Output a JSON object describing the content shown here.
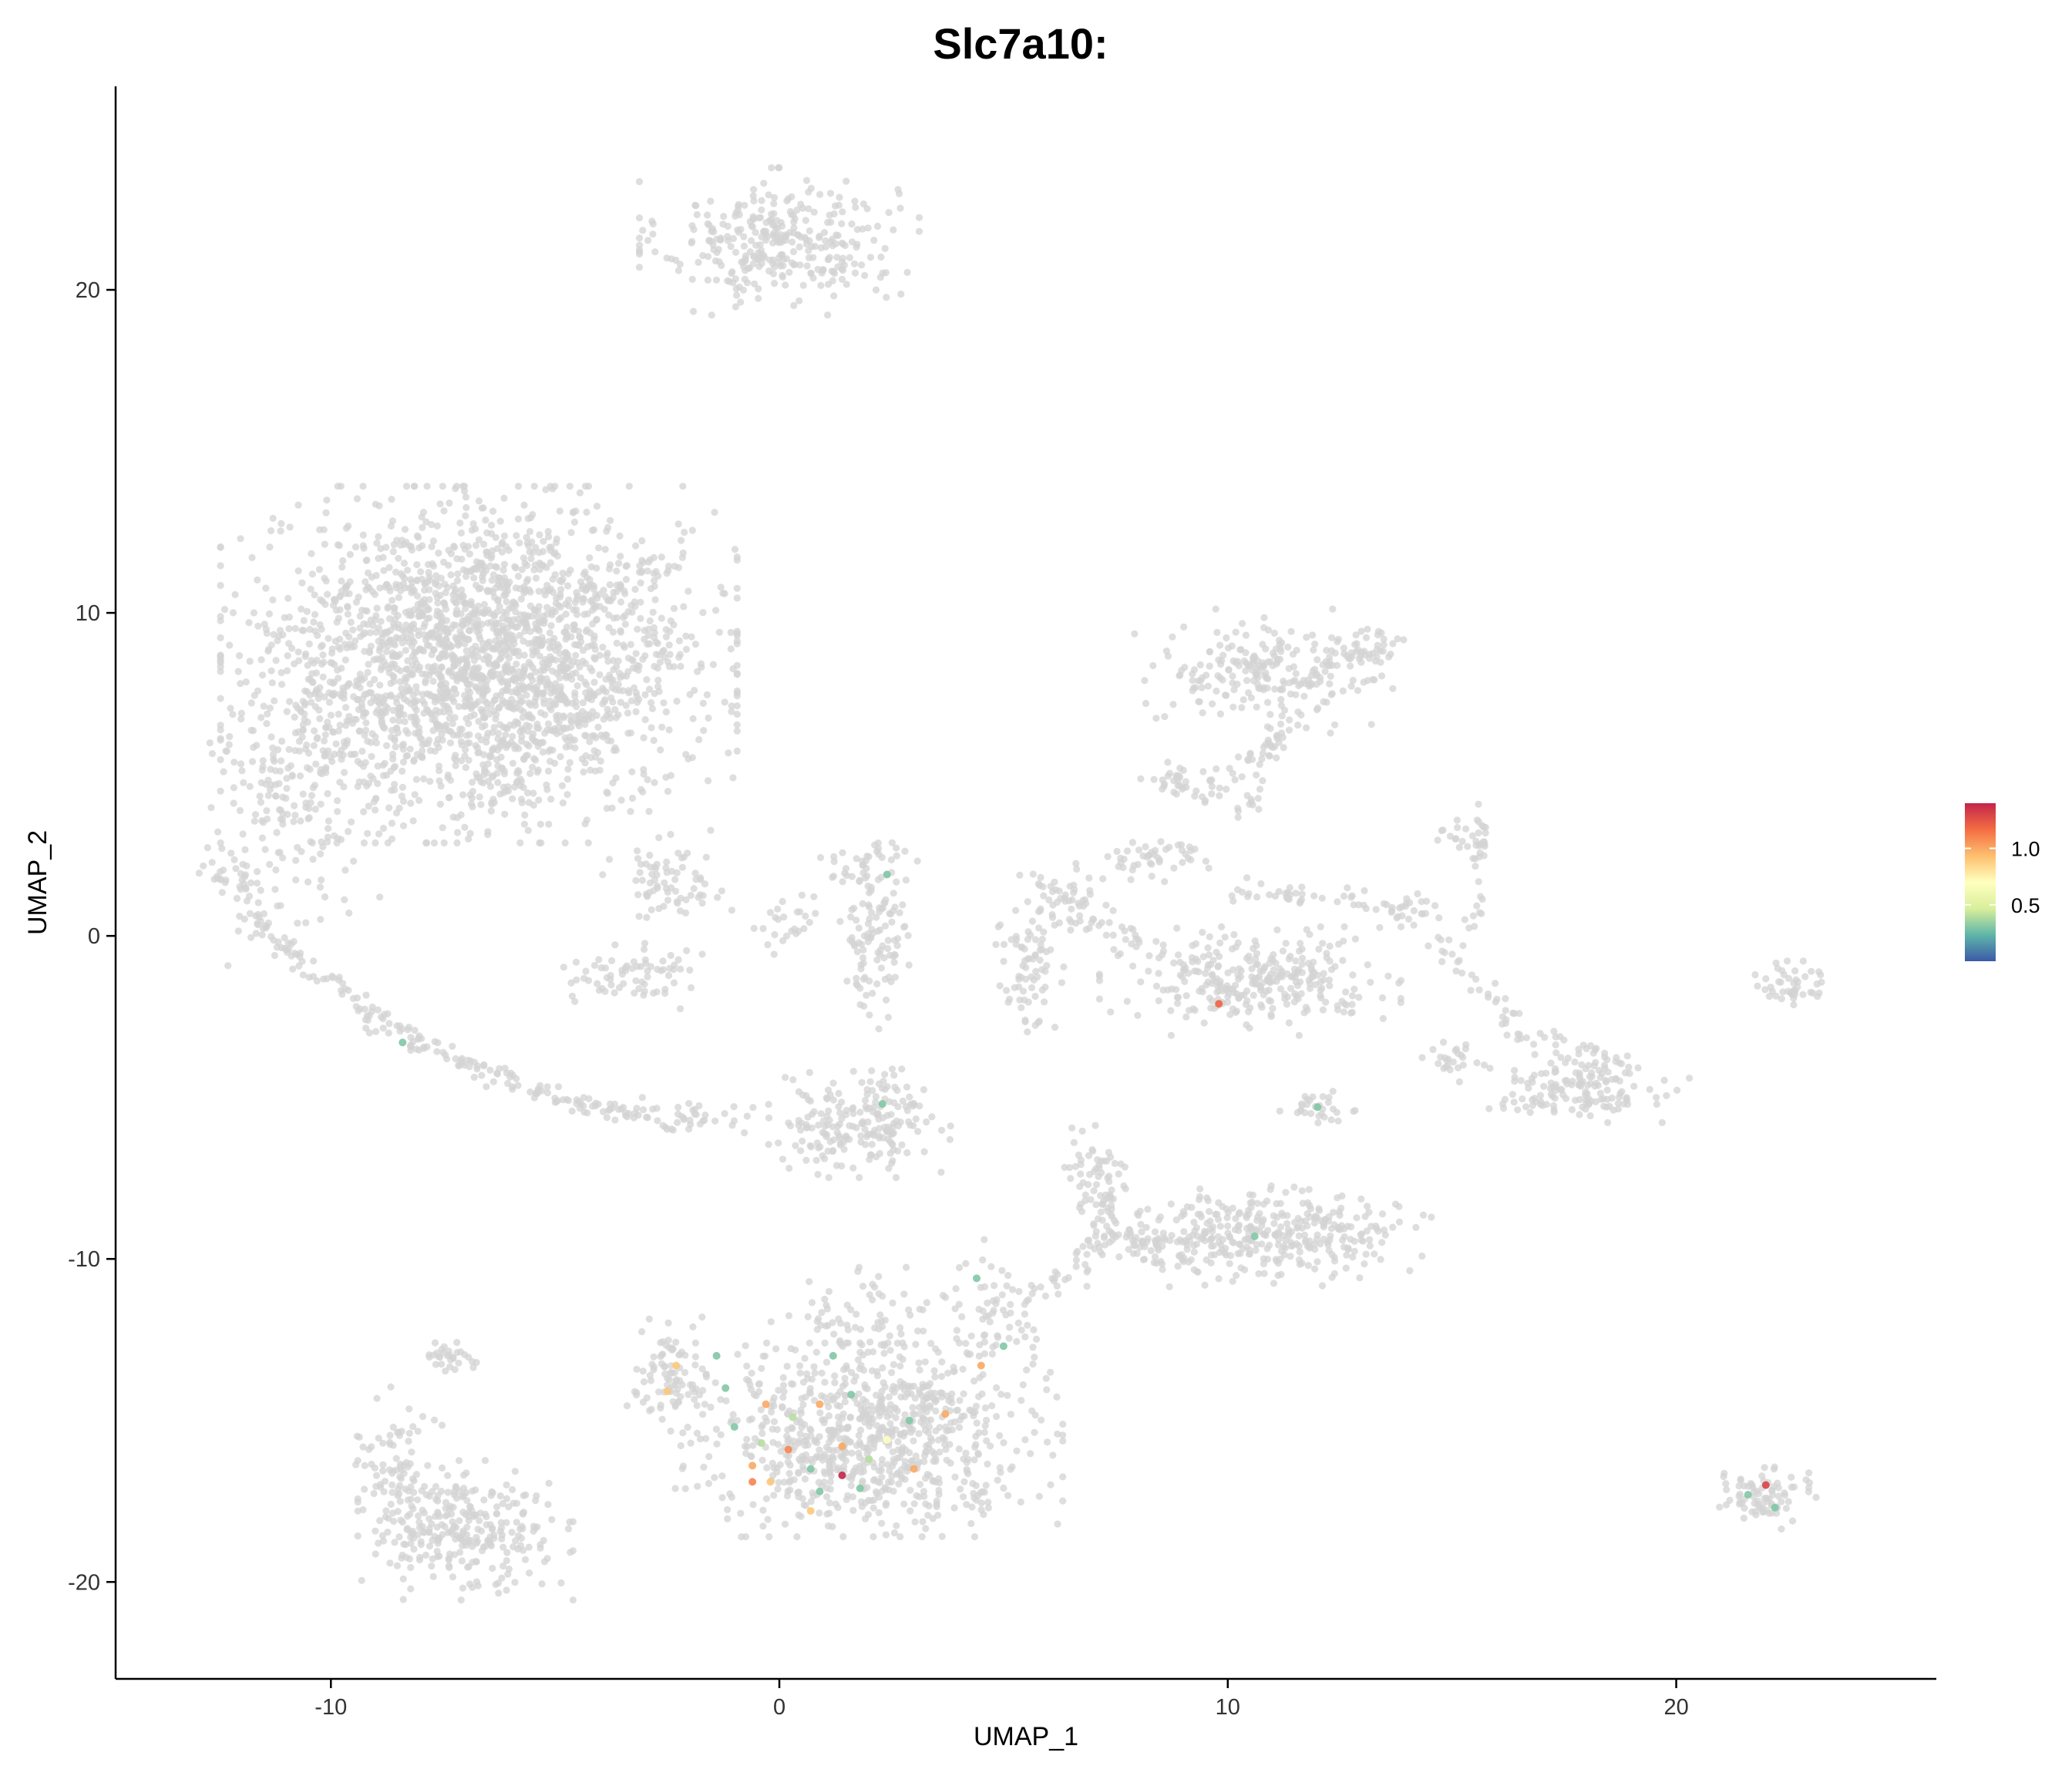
{
  "chart_data": {
    "type": "scatter",
    "title": "Slc7a10:",
    "xlabel": "UMAP_1",
    "ylabel": "UMAP_2",
    "xlim": [
      -14.8,
      25.8
    ],
    "ylim": [
      -23.0,
      26.3
    ],
    "x_ticks": [
      -10,
      0,
      10,
      20
    ],
    "y_ticks": [
      -20,
      -10,
      0,
      10,
      20
    ],
    "x_tick_labels": [
      "-10",
      "0",
      "10",
      "20"
    ],
    "y_tick_labels": [
      "-20",
      "-10",
      "0",
      "10",
      "20"
    ],
    "grid": false,
    "legend": {
      "position": "right",
      "type": "colorbar",
      "range": [
        0,
        1.4
      ],
      "ticks": [
        0.5,
        1.0
      ],
      "tick_labels": [
        "0.5",
        "1.0"
      ],
      "colors": [
        "#3b5aa8",
        "#5fb5a9",
        "#d9ef9b",
        "#ffffbf",
        "#fdbf6f",
        "#f46d43",
        "#c3254a"
      ]
    },
    "base_color": "#d3d3d3",
    "clusters": [
      {
        "cx": 0.0,
        "cy": 21.5,
        "sx": 1.3,
        "sy": 0.95,
        "n": 330
      },
      {
        "cx": -6.7,
        "cy": 8.4,
        "sx": 2.4,
        "sy": 2.3,
        "n": 2300
      },
      {
        "cx": -10.8,
        "cy": 4.6,
        "sx": 0.9,
        "sy": 2.3,
        "n": 160
      },
      {
        "cx": -12.0,
        "cy": 2.2,
        "sx": 0.4,
        "sy": 0.7,
        "n": 45
      },
      {
        "cx": -2.5,
        "cy": 1.6,
        "sx": 0.6,
        "sy": 0.6,
        "n": 70
      },
      {
        "cx": -3.2,
        "cy": -1.2,
        "sx": 0.7,
        "sy": 0.45,
        "n": 70
      },
      {
        "cx": 0.0,
        "cy": 0.3,
        "sx": 0.4,
        "sy": 0.4,
        "n": 25
      },
      {
        "cx": 2.0,
        "cy": 2.3,
        "sx": 0.45,
        "sy": 0.35,
        "n": 30
      },
      {
        "cx": 2.1,
        "cy": 0.0,
        "sx": 0.35,
        "sy": 1.2,
        "n": 110
      },
      {
        "cx": 1.8,
        "cy": -5.8,
        "sx": 0.85,
        "sy": 0.7,
        "n": 210
      },
      {
        "cx": -2.0,
        "cy": -5.6,
        "sx": 0.8,
        "sy": 0.25,
        "n": 40
      },
      {
        "cx": 2.0,
        "cy": -15.6,
        "sx": 1.8,
        "sy": 1.25,
        "n": 760
      },
      {
        "cx": -2.4,
        "cy": -13.6,
        "sx": 0.45,
        "sy": 0.75,
        "n": 90
      },
      {
        "cx": 1.8,
        "cy": -12.3,
        "sx": 0.9,
        "sy": 0.85,
        "n": 100
      },
      {
        "cx": 4.9,
        "cy": -11.8,
        "sx": 0.5,
        "sy": 1.0,
        "n": 70
      },
      {
        "cx": -7.0,
        "cy": -18.4,
        "sx": 1.0,
        "sy": 0.9,
        "n": 280
      },
      {
        "cx": -8.6,
        "cy": -16.6,
        "sx": 0.45,
        "sy": 1.1,
        "n": 80
      },
      {
        "cx": -7.3,
        "cy": -13.0,
        "sx": 0.3,
        "sy": 0.3,
        "n": 30
      },
      {
        "cx": 10.7,
        "cy": -9.3,
        "sx": 1.6,
        "sy": 0.65,
        "n": 380
      },
      {
        "cx": 7.0,
        "cy": -7.5,
        "sx": 0.3,
        "sy": 0.8,
        "n": 50
      },
      {
        "cx": 10.8,
        "cy": 8.2,
        "sx": 1.2,
        "sy": 0.8,
        "n": 200
      },
      {
        "cx": 13.2,
        "cy": 8.8,
        "sx": 0.3,
        "sy": 0.4,
        "n": 35
      },
      {
        "cx": 8.9,
        "cy": 4.8,
        "sx": 0.35,
        "sy": 0.3,
        "n": 30
      },
      {
        "cx": 6.3,
        "cy": 1.2,
        "sx": 0.5,
        "sy": 0.45,
        "n": 50
      },
      {
        "cx": 8.2,
        "cy": 2.4,
        "sx": 0.6,
        "sy": 0.3,
        "n": 45
      },
      {
        "cx": 5.5,
        "cy": -1.2,
        "sx": 0.35,
        "sy": 0.9,
        "n": 70
      },
      {
        "cx": 10.5,
        "cy": -1.4,
        "sx": 1.4,
        "sy": 0.7,
        "n": 300
      },
      {
        "cx": 12.0,
        "cy": -5.3,
        "sx": 0.35,
        "sy": 0.3,
        "n": 30
      },
      {
        "cx": 17.9,
        "cy": -4.7,
        "sx": 1.0,
        "sy": 0.45,
        "n": 150
      },
      {
        "cx": 15.0,
        "cy": -3.9,
        "sx": 0.3,
        "sy": 0.3,
        "n": 25
      },
      {
        "cx": 15.4,
        "cy": 3.0,
        "sx": 0.3,
        "sy": 0.25,
        "n": 25
      },
      {
        "cx": 13.9,
        "cy": 0.8,
        "sx": 0.5,
        "sy": 0.3,
        "n": 30
      },
      {
        "cx": 22.6,
        "cy": -1.5,
        "sx": 0.35,
        "sy": 0.3,
        "n": 45
      },
      {
        "cx": 21.8,
        "cy": -17.4,
        "sx": 0.55,
        "sy": 0.4,
        "n": 80
      }
    ],
    "paths": [
      {
        "from": [
          -11.8,
          0.5
        ],
        "to": [
          -8.5,
          -3.0
        ],
        "n": 80,
        "spread": 0.35
      },
      {
        "from": [
          -8.5,
          -3.0
        ],
        "to": [
          -5.5,
          -4.8
        ],
        "n": 60,
        "spread": 0.3
      },
      {
        "from": [
          -5.5,
          -4.8
        ],
        "to": [
          -3.2,
          -5.6
        ],
        "n": 50,
        "spread": 0.25
      },
      {
        "from": [
          -4.2,
          10.5
        ],
        "to": [
          -2.2,
          11.7
        ],
        "n": 40,
        "spread": 0.5
      },
      {
        "from": [
          2.6,
          -13.8
        ],
        "to": [
          4.3,
          -14.7
        ],
        "n": 35,
        "spread": 0.35
      },
      {
        "from": [
          5.5,
          -11.3
        ],
        "to": [
          7.4,
          -9.2
        ],
        "n": 35,
        "spread": 0.35
      },
      {
        "from": [
          7.4,
          -9.2
        ],
        "to": [
          7.2,
          -6.6
        ],
        "n": 25,
        "spread": 0.25
      },
      {
        "from": [
          7.6,
          -9.4
        ],
        "to": [
          8.6,
          -9.5
        ],
        "n": 20,
        "spread": 0.3
      },
      {
        "from": [
          9.5,
          4.4
        ],
        "to": [
          11.4,
          6.5
        ],
        "n": 35,
        "spread": 0.35
      },
      {
        "from": [
          11.2,
          6.8
        ],
        "to": [
          10.4,
          3.8
        ],
        "n": 25,
        "spread": 0.3
      },
      {
        "from": [
          6.3,
          0.5
        ],
        "to": [
          8.3,
          -0.2
        ],
        "n": 25,
        "spread": 0.35
      },
      {
        "from": [
          9.8,
          1.3
        ],
        "to": [
          13.2,
          1.2
        ],
        "n": 35,
        "spread": 0.35
      },
      {
        "from": [
          14.7,
          -0.3
        ],
        "to": [
          16.4,
          -2.6
        ],
        "n": 30,
        "spread": 0.3
      },
      {
        "from": [
          16.0,
          -2.9
        ],
        "to": [
          19.1,
          -3.9
        ],
        "n": 30,
        "spread": 0.3
      },
      {
        "from": [
          15.5,
          0.2
        ],
        "to": [
          15.7,
          4.2
        ],
        "n": 20,
        "spread": 0.2
      },
      {
        "from": [
          11.6,
          7.7
        ],
        "to": [
          13.3,
          9.3
        ],
        "n": 25,
        "spread": 0.3
      }
    ],
    "expressing_points": [
      {
        "x": -2.3,
        "y": -13.3,
        "v": 0.9
      },
      {
        "x": -2.5,
        "y": -14.1,
        "v": 0.9
      },
      {
        "x": 0.3,
        "y": -14.9,
        "v": 0.4
      },
      {
        "x": -1.2,
        "y": -14.0,
        "v": 0.3
      },
      {
        "x": -0.3,
        "y": -14.5,
        "v": 1.0
      },
      {
        "x": 0.9,
        "y": -14.5,
        "v": 1.0
      },
      {
        "x": -0.4,
        "y": -15.7,
        "v": 0.4
      },
      {
        "x": 0.2,
        "y": -15.9,
        "v": 1.1
      },
      {
        "x": 1.4,
        "y": -15.8,
        "v": 1.0
      },
      {
        "x": 2.0,
        "y": -16.2,
        "v": 0.4
      },
      {
        "x": 2.4,
        "y": -15.6,
        "v": 0.7
      },
      {
        "x": -0.6,
        "y": -16.4,
        "v": 1.0
      },
      {
        "x": 0.7,
        "y": -16.5,
        "v": 0.3
      },
      {
        "x": -0.6,
        "y": -16.9,
        "v": 1.1
      },
      {
        "x": -0.2,
        "y": -16.9,
        "v": 0.9
      },
      {
        "x": 1.4,
        "y": -16.7,
        "v": 1.4
      },
      {
        "x": 3.0,
        "y": -16.5,
        "v": 1.0
      },
      {
        "x": 0.7,
        "y": -17.8,
        "v": 0.9
      },
      {
        "x": 3.7,
        "y": -14.8,
        "v": 1.0
      },
      {
        "x": 4.5,
        "y": -13.3,
        "v": 1.0
      },
      {
        "x": 9.8,
        "y": -2.1,
        "v": 1.2
      },
      {
        "x": 22.0,
        "y": -17.0,
        "v": 1.3
      },
      {
        "x": 21.6,
        "y": -17.3,
        "v": 0.3
      },
      {
        "x": 22.2,
        "y": -17.7,
        "v": 0.3
      },
      {
        "x": 1.2,
        "y": -13.0,
        "v": 0.3
      },
      {
        "x": -1.4,
        "y": -13.0,
        "v": 0.3
      },
      {
        "x": 1.6,
        "y": -14.2,
        "v": 0.3
      },
      {
        "x": 2.9,
        "y": -15.0,
        "v": 0.3
      },
      {
        "x": 0.9,
        "y": -17.2,
        "v": 0.3
      },
      {
        "x": 1.8,
        "y": -17.1,
        "v": 0.3
      },
      {
        "x": -1.0,
        "y": -15.2,
        "v": 0.3
      },
      {
        "x": 12.0,
        "y": -5.3,
        "v": 0.3
      },
      {
        "x": 5.0,
        "y": -12.7,
        "v": 0.3
      },
      {
        "x": 4.4,
        "y": -10.6,
        "v": 0.3
      },
      {
        "x": 2.3,
        "y": -5.2,
        "v": 0.3
      },
      {
        "x": -8.4,
        "y": -3.3,
        "v": 0.3
      },
      {
        "x": 2.4,
        "y": 1.9,
        "v": 0.3
      },
      {
        "x": 10.6,
        "y": -9.3,
        "v": 0.3
      }
    ]
  }
}
